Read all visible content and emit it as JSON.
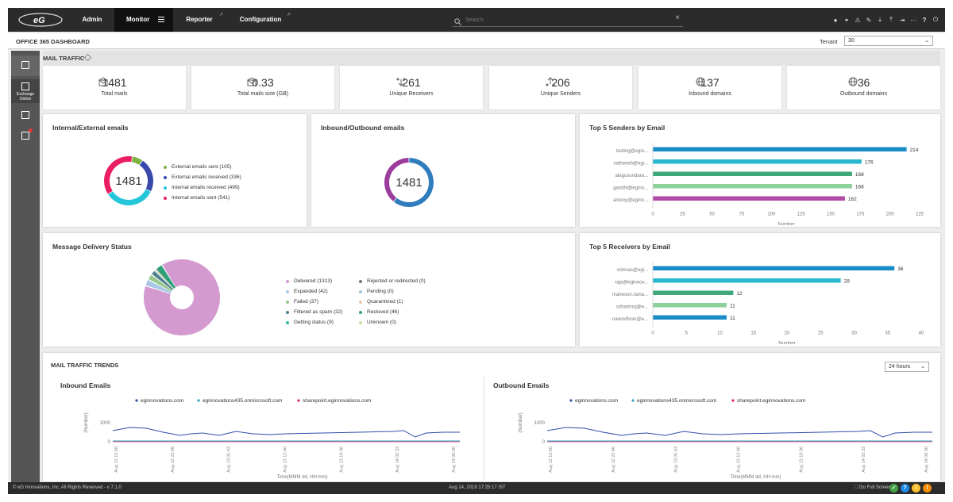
{
  "nav": {
    "tabs": [
      {
        "label": "Admin"
      },
      {
        "label": "Monitor"
      },
      {
        "label": "Reporter"
      },
      {
        "label": "Configuration"
      }
    ],
    "search_placeholder": "Search"
  },
  "header": {
    "title": "OFFICE 365 DASHBOARD",
    "tenant_label": "Tenant",
    "tenant_value": "30"
  },
  "sidebar": {
    "items": [
      {
        "icon": "office-icon",
        "label": ""
      },
      {
        "icon": "exchange-icon",
        "label": "Exchange Online"
      },
      {
        "icon": "teams-icon",
        "label": ""
      },
      {
        "icon": "report-alert-icon",
        "label": ""
      }
    ]
  },
  "mail_traffic": {
    "section_title": "MAIL TRAFFIC",
    "kpis": [
      {
        "value": "1481",
        "label": "Total mails",
        "icon": "mail-icon"
      },
      {
        "value": "0.33",
        "label": "Total mails size (GB)",
        "icon": "mail-size-icon"
      },
      {
        "value": "261",
        "label": "Unique Receivers",
        "icon": "receivers-icon"
      },
      {
        "value": "206",
        "label": "Unique Senders",
        "icon": "senders-icon"
      },
      {
        "value": "137",
        "label": "Inbound domains",
        "icon": "globe-icon"
      },
      {
        "value": "36",
        "label": "Outbound domains",
        "icon": "globe-icon"
      }
    ]
  },
  "internal_external": {
    "title": "Internal/External emails",
    "center": "1481",
    "items": [
      {
        "label": "External emails sent (105)",
        "value": 105,
        "color": "#7cb342"
      },
      {
        "label": "External emails received (336)",
        "value": 336,
        "color": "#3949ab"
      },
      {
        "label": "Internal emails received (499)",
        "value": 499,
        "color": "#26c6da"
      },
      {
        "label": "Internal emails sent (541)",
        "value": 541,
        "color": "#e91e63"
      }
    ]
  },
  "inbound_outbound": {
    "title": "Inbound/Outbound emails",
    "center": "1481",
    "items": [
      {
        "value": 900,
        "color": "#2f7dbd"
      },
      {
        "value": 581,
        "color": "#9c3c9c"
      }
    ]
  },
  "delivery": {
    "title": "Message Delivery Status",
    "legend_left": [
      {
        "label": "Delivered (1313)",
        "value": 1313,
        "color": "#d49ad0"
      },
      {
        "label": "Expanded (42)",
        "value": 42,
        "color": "#a9c8e6"
      },
      {
        "label": "Failed (37)",
        "value": 37,
        "color": "#97c88c"
      },
      {
        "label": "Filtered as spam (32)",
        "value": 32,
        "color": "#4d7f8f"
      },
      {
        "label": "Getting status (9)",
        "value": 9,
        "color": "#3fb8a8"
      }
    ],
    "legend_right": [
      {
        "label": "Rejected or redirected (0)",
        "value": 0,
        "color": "#777777"
      },
      {
        "label": "Pending (0)",
        "value": 0,
        "color": "#9ec8d8"
      },
      {
        "label": "Quarantined (1)",
        "value": 1,
        "color": "#e8c6a8"
      },
      {
        "label": "Resloved (46)",
        "value": 46,
        "color": "#2fa07a"
      },
      {
        "label": "Unknown (0)",
        "value": 0,
        "color": "#c5e3a5"
      }
    ]
  },
  "chart_data": [
    {
      "type": "bar",
      "title": "Top 5 Senders by Email",
      "categories": [
        "testing@egin...",
        "satheesh@egi...",
        "alagusundara...",
        "gandhi@egino...",
        "antony@eginn..."
      ],
      "values": [
        214,
        176,
        168,
        168,
        162
      ],
      "colors": [
        "#1a8cc8",
        "#27b8d0",
        "#3fa87a",
        "#8ed19a",
        "#b24aa8"
      ],
      "xlabel": "Number",
      "xticks": [
        "0",
        "25",
        "50",
        "75",
        "100",
        "125",
        "150",
        "175",
        "200",
        "225"
      ],
      "xlim": [
        0,
        225
      ]
    },
    {
      "type": "bar",
      "title": "Top 5 Receivers by Email",
      "categories": [
        "srinivas@egi...",
        "raja@eginnov...",
        "maheson.rama...",
        "sriharimsj@e...",
        "narendhran@e..."
      ],
      "values": [
        36,
        28,
        12,
        11,
        11
      ],
      "colors": [
        "#1a8cc8",
        "#27b8d0",
        "#3fa87a",
        "#8ed19a",
        "#1a8cc8"
      ],
      "xlabel": "Number",
      "xticks": [
        "0",
        "5",
        "10",
        "15",
        "20",
        "25",
        "30",
        "35",
        "40"
      ],
      "xlim": [
        0,
        40
      ]
    }
  ],
  "trends": {
    "section_title": "MAIL TRAFFIC TRENDS",
    "range": "24 hours",
    "ylabel": "(Number)",
    "xlabel": "Time(MMM dd, HH:mm)",
    "yticks": [
      "1000",
      "0"
    ],
    "series_names": [
      "eginnovations.com",
      "eginnovations435.onmicrosoft.com",
      "sharepoint.eginnovations.com"
    ],
    "series_colors": [
      "#2f4fa8",
      "#2aa6c8",
      "#e0245e"
    ],
    "inbound": {
      "title": "Inbound Emails",
      "xticks": [
        "Aug 12 15:50",
        "Aug 12 22:46",
        "Aug 13 05:43",
        "Aug 13 12:40",
        "Aug 13 19:36",
        "Aug 14 02:33",
        "Aug 14 09:30"
      ]
    },
    "outbound": {
      "title": "Outbound Emails",
      "xticks": [
        "Aug 12 15:50",
        "Aug 12 22:46",
        "Aug 13 05:43",
        "Aug 13 12:40",
        "Aug 13 19:36",
        "Aug 14 02:33",
        "Aug 14 09:30"
      ]
    }
  },
  "footer": {
    "copyright": "© eG Innovations, Inc. All Rights Reserved - v 7.1.0",
    "timestamp": "Aug 14, 2019 17:25:17 IST",
    "fullscreen": "Go Full Screen"
  }
}
